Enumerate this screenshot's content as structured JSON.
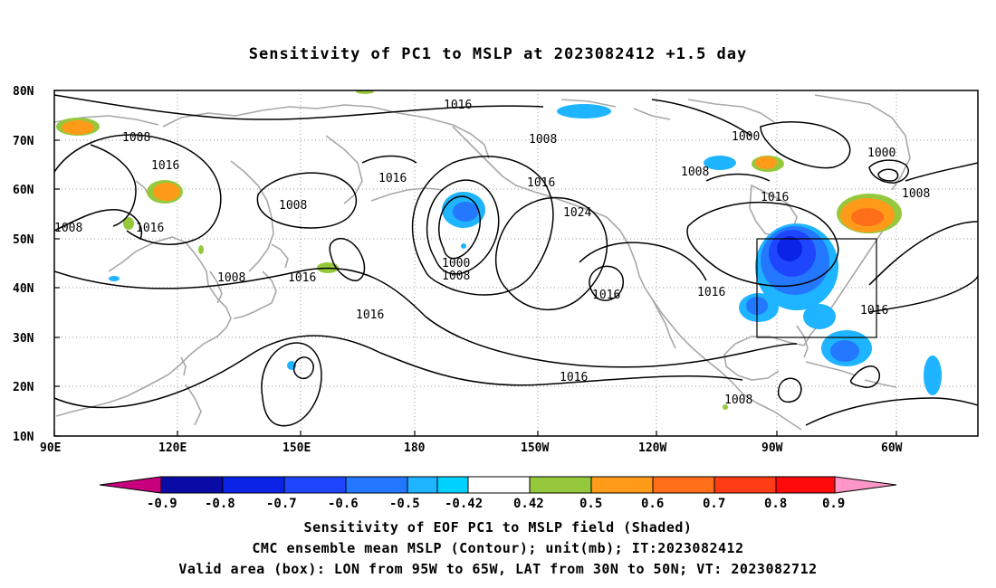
{
  "title": "Sensitivity of PC1 to MSLP at 2023082412 +1.5 day",
  "map": {
    "lat_ticks": [
      "80N",
      "70N",
      "60N",
      "50N",
      "40N",
      "30N",
      "20N",
      "10N"
    ],
    "lon_ticks": [
      "90E",
      "120E",
      "150E",
      "180",
      "150W",
      "120W",
      "90W",
      "60W"
    ],
    "extent": {
      "lon_min": 90,
      "lon_max": 315,
      "lat_min": 10,
      "lat_max": 80
    },
    "valid_box": {
      "lon_from": "95W",
      "lon_to": "65W",
      "lat_from": "30N",
      "lat_to": "50N"
    },
    "contour_labels": [
      "1016",
      "1008",
      "1016",
      "1008",
      "1016",
      "1008",
      "1016",
      "1016",
      "1008",
      "1016",
      "1000",
      "1008",
      "1016",
      "1024",
      "1016",
      "1016",
      "1016",
      "1008",
      "1000",
      "1000",
      "1008",
      "1016",
      "1016",
      "1008",
      "1008"
    ]
  },
  "colorbar": {
    "labels": [
      "-0.9",
      "-0.8",
      "-0.7",
      "-0.6",
      "-0.5",
      "-0.42",
      "0.42",
      "0.5",
      "0.6",
      "0.7",
      "0.8",
      "0.9"
    ],
    "colors": [
      "#c8007e",
      "#0a0aa6",
      "#0a23e6",
      "#1e46ff",
      "#2378ff",
      "#1eb4ff",
      "#00d2ff",
      "#ffffff",
      "#96c83c",
      "#ff9b19",
      "#ff6e19",
      "#ff3c14",
      "#ff0a0a",
      "#ff96c8"
    ]
  },
  "captions": [
    "Sensitivity of EOF PC1 to MSLP field (Shaded)",
    "CMC ensemble mean MSLP (Contour); unit(mb); IT:2023082412",
    "Valid area (box): LON from 95W to 65W, LAT from 30N to 50N; VT: 2023082712"
  ]
}
